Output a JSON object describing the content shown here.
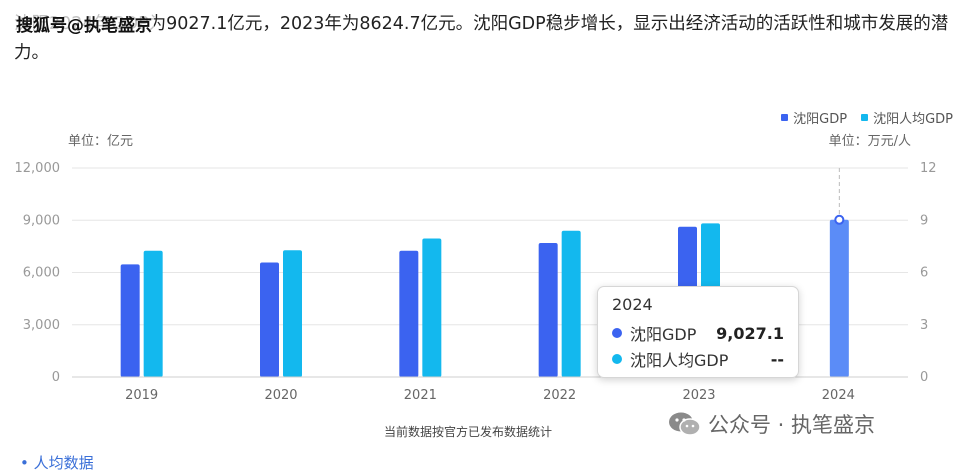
{
  "article": {
    "text": "沈阳2024年GDP为9027.1亿元，2023年为8624.7亿元。沈阳GDP稳步增长，显示出经济活动的活跃性和城市发展的潜力。"
  },
  "watermark_top": "搜狐号@执笔盛京",
  "watermark_bottom": "公众号 · 执笔盛京",
  "footnote": "当前数据按官方已发布数据统计",
  "cut_off_text": "• 人均数据",
  "chart_data": {
    "type": "bar",
    "categories": [
      "2019",
      "2020",
      "2021",
      "2022",
      "2023",
      "2024"
    ],
    "series": [
      {
        "name": "沈阳GDP",
        "axis": "left",
        "color": "#3b63f0",
        "values": [
          6470,
          6572,
          7249,
          7696,
          8624.7,
          9027.1
        ]
      },
      {
        "name": "沈阳人均GDP",
        "axis": "right",
        "color": "#13b8ee",
        "values": [
          7.25,
          7.28,
          7.95,
          8.4,
          8.82,
          null
        ]
      }
    ],
    "left_axis": {
      "unit_label": "单位：亿元",
      "min": 0,
      "max": 12000,
      "ticks": [
        "0",
        "3,000",
        "6,000",
        "9,000",
        "12,000"
      ]
    },
    "right_axis": {
      "unit_label": "单位：万元/人",
      "min": 0,
      "max": 12,
      "ticks": [
        "0",
        "3",
        "6",
        "9",
        "12"
      ]
    },
    "highlighted_category": "2024",
    "highlight_color": "#5b8cf7",
    "grid": true,
    "legend_position": "top-right",
    "tooltip": {
      "title": "2024",
      "rows": [
        {
          "label": "沈阳GDP",
          "value": "9,027.1",
          "color": "#3b63f0"
        },
        {
          "label": "沈阳人均GDP",
          "value": "--",
          "color": "#13b8ee"
        }
      ]
    }
  }
}
